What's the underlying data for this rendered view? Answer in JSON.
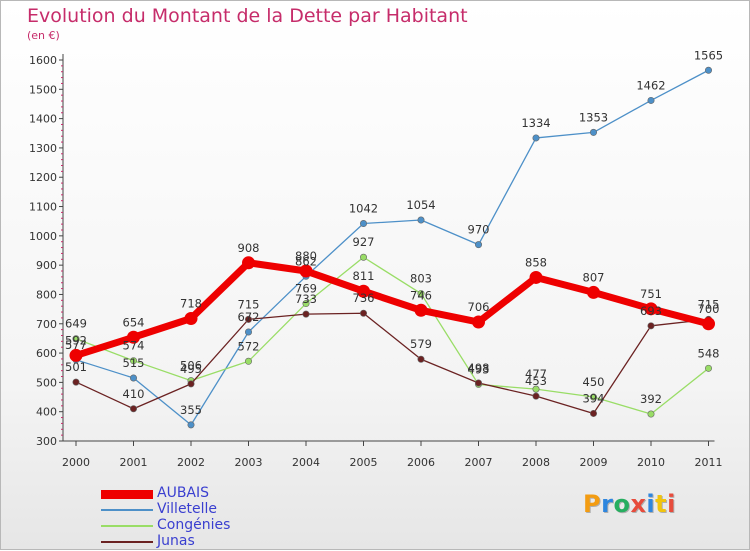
{
  "title": "Evolution du Montant de la Dette par Habitant",
  "subtitle": "(en €)",
  "logo": {
    "text": "Proxiti",
    "colors": [
      "#f39c12",
      "#2e86de",
      "#27ae60",
      "#e74c3c",
      "#2e86de",
      "#f1c40f",
      "#e74c3c"
    ]
  },
  "chart_data": {
    "type": "line",
    "categories": [
      "2000",
      "2001",
      "2002",
      "2003",
      "2004",
      "2005",
      "2006",
      "2007",
      "2008",
      "2009",
      "2010",
      "2011"
    ],
    "ylim": [
      300,
      1600
    ],
    "yticks": [
      300,
      400,
      500,
      600,
      700,
      800,
      900,
      1000,
      1100,
      1200,
      1300,
      1400,
      1500,
      1600
    ],
    "grid": false,
    "legend_position": "bottom-left",
    "series": [
      {
        "name": "AUBAIS",
        "color": "#ee0000",
        "values": [
          592,
          654,
          718,
          908,
          880,
          811,
          746,
          706,
          858,
          807,
          751,
          700
        ]
      },
      {
        "name": "Villetelle",
        "color": "#4d90c8",
        "values": [
          577,
          515,
          355,
          672,
          862,
          1042,
          1054,
          970,
          1334,
          1353,
          1462,
          1565
        ]
      },
      {
        "name": "Congénies",
        "color": "#99dd66",
        "values": [
          649,
          574,
          506,
          572,
          769,
          927,
          803,
          493,
          477,
          450,
          392,
          548
        ]
      },
      {
        "name": "Junas",
        "color": "#6b2222",
        "values": [
          501,
          410,
          495,
          715,
          733,
          736,
          579,
          498,
          453,
          394,
          693,
          715
        ]
      }
    ]
  }
}
